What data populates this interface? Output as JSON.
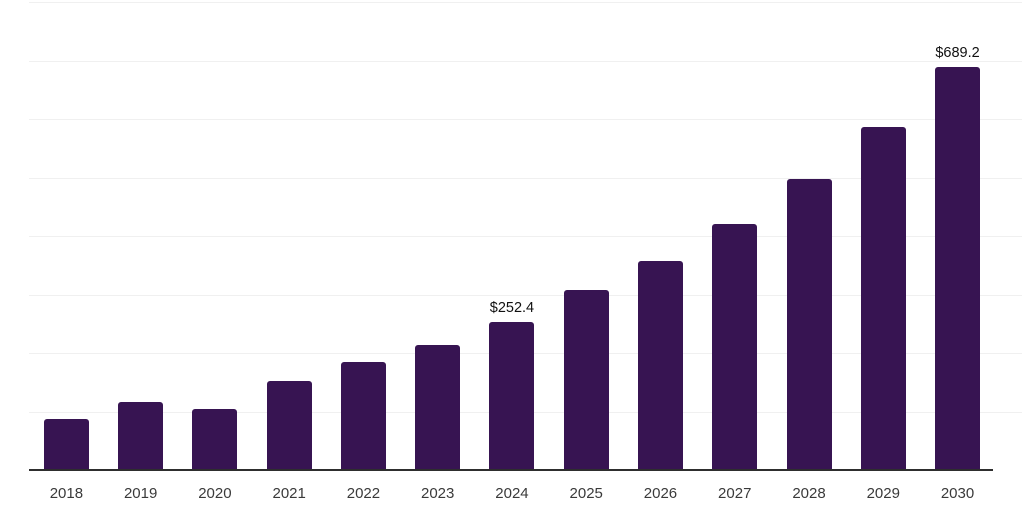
{
  "chart_data": {
    "type": "bar",
    "title": "",
    "xlabel": "",
    "ylabel": "",
    "categories": [
      "2018",
      "2019",
      "2020",
      "2021",
      "2022",
      "2023",
      "2024",
      "2025",
      "2026",
      "2027",
      "2028",
      "2029",
      "2030"
    ],
    "values": [
      87,
      116,
      104,
      152,
      184,
      214,
      252.4,
      307,
      358,
      420,
      497,
      586,
      689.2
    ],
    "value_prefix": "$",
    "data_labels": {
      "2024": "$252.4",
      "2030": "$689.2"
    },
    "ylim": [
      0,
      800
    ],
    "gridline_step": 100,
    "grid": true,
    "legend": "none",
    "y_axis_labels_visible": false
  },
  "colors": {
    "background": "#ffffff",
    "bar": "#371452",
    "gridline": "#f0f0f0",
    "axis": "#2e2e2e",
    "data_label": "#111111",
    "tick_label": "#3a3a3a"
  }
}
